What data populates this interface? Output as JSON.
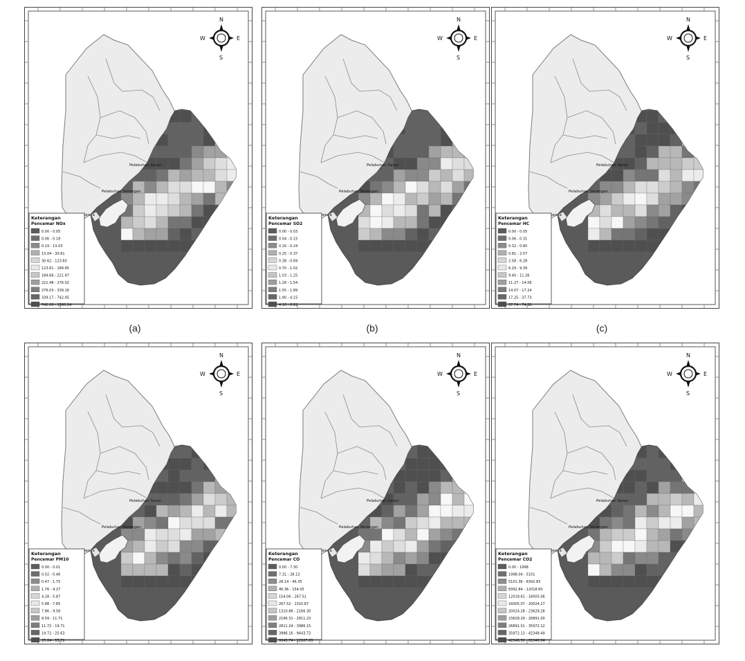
{
  "figure": {
    "panels": [
      {
        "caption": "(a)",
        "label_title": "Keterangan",
        "legend_title": "Pencemar NOx",
        "legend": [
          "0.00 - 0.05",
          "0.06 - 0.18",
          "0.19 - 13.03",
          "13.04 - 30.61",
          "30.62 - 123.60",
          "123.61 - 184.65",
          "184.66 - 221.47",
          "221.48 - 276.02",
          "276.03 - 339.16",
          "339.17 - 742.05",
          "742.06 - 1580.24"
        ],
        "places": [
          "Pelabuhan Sanur",
          "Pelabuhan Serangan",
          "Pelabuhan Benoa"
        ],
        "compass": {
          "n": "N",
          "s": "S",
          "e": "E",
          "w": "W"
        }
      },
      {
        "caption": "(b)",
        "label_title": "Keterangan",
        "legend_title": "Pencemar SO2",
        "legend": [
          "0.00 - 0.03",
          "0.04 - 0.15",
          "0.16 - 0.24",
          "0.25 - 0.37",
          "0.38 - 0.69",
          "0.70 - 1.02",
          "1.03 - 1.25",
          "1.26 - 1.54",
          "1.55 - 1.89",
          "1.90 - 4.15",
          "4.16 - 8.82"
        ],
        "places": [
          "Pelabuhan Sanur",
          "Pelabuhan Serangan",
          "Pelabuhan Benoa"
        ],
        "compass": {
          "n": "N",
          "s": "S",
          "e": "E",
          "w": "W"
        }
      },
      {
        "caption": "(c)",
        "label_title": "Keterangan",
        "legend_title": "Pencemar HC",
        "legend": [
          "0.00 - 0.05",
          "0.06 - 0.31",
          "0.32 - 0.80",
          "0.81 - 2.57",
          "2.58 - 6.28",
          "6.29 - 9.39",
          "9.40 - 11.26",
          "11.27 - 14.06",
          "14.07 - 17.24",
          "17.25 - 37.73",
          "37.74 - 74.38"
        ],
        "places": [
          "Pelabuhan Sanur",
          "Pelabuhan Serangan",
          "Pelabuhan Benoa"
        ],
        "compass": {
          "n": "N",
          "s": "S",
          "e": "E",
          "w": "W"
        }
      },
      {
        "caption": "",
        "label_title": "Keterangan",
        "legend_title": "Pencemar PM10",
        "legend": [
          "0.00 - 0.01",
          "0.02 - 0.46",
          "0.47 - 1.75",
          "1.76 - 4.27",
          "4.28 - 5.87",
          "5.88 - 7.85",
          "7.86 - 9.58",
          "9.59 - 11.71",
          "11.72 - 19.71",
          "19.72 - 25.63",
          "25.64 - 55.71"
        ],
        "places": [
          "Pelabuhan Sanur",
          "Pelabuhan Serangan",
          "Pelabuhan Benoa"
        ],
        "compass": {
          "n": "N",
          "s": "S",
          "e": "E",
          "w": "W"
        }
      },
      {
        "caption": "",
        "label_title": "Keterangan",
        "legend_title": "Pencemar CO",
        "legend": [
          "0.00 - 7.30",
          "7.31 - 28.13",
          "28.14 - 46.35",
          "46.36 - 154.05",
          "154.06 - 267.51",
          "267.52 - 1310.87",
          "1310.88 - 2166.30",
          "2166.31 - 2811.23",
          "2811.24 - 3986.15",
          "3986.16 - 9643.73",
          "9643.74 - 12907.63"
        ],
        "places": [
          "Pelabuhan Sanur",
          "Pelabuhan Serangan",
          "Pelabuhan Benoa"
        ],
        "compass": {
          "n": "N",
          "s": "S",
          "e": "E",
          "w": "W"
        }
      },
      {
        "caption": "",
        "label_title": "Keterangan",
        "legend_title": "Pencemar CO2",
        "legend": [
          "0.00 - 1998",
          "1998.04 - 5101",
          "5101.36 - 8392.83",
          "8392.84 - 12018.60",
          "12018.61 - 16005.06",
          "16005.07 - 20024.27",
          "20024.28 - 23628.28",
          "23628.29 - 26891.00",
          "26891.01 - 35972.12",
          "35972.13 - 42348.49",
          "42348.50 - 61946.94"
        ],
        "places": [
          "Pelabuhan Sanur",
          "Pelabuhan Serangan",
          "Pelabuhan Benoa"
        ],
        "compass": {
          "n": "N",
          "s": "S",
          "e": "E",
          "w": "W"
        }
      }
    ]
  }
}
